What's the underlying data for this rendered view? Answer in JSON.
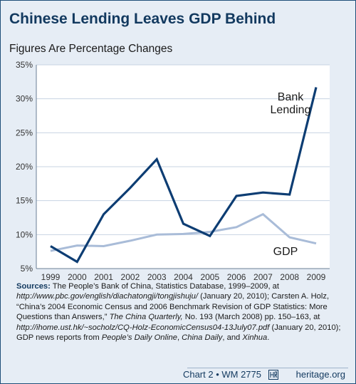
{
  "header": {
    "title": "Chinese Lending Leaves GDP Behind",
    "subtitle": "Figures Are Percentage Changes"
  },
  "chart_data": {
    "type": "line",
    "x": [
      "1999",
      "2000",
      "2001",
      "2002",
      "2003",
      "2004",
      "2005",
      "2006",
      "2007",
      "2008",
      "2009"
    ],
    "series": [
      {
        "name": "Bank Lending",
        "name_lines": [
          "Bank",
          "Lending"
        ],
        "color": "#0d3d73",
        "values": [
          8.3,
          6.0,
          13.0,
          16.9,
          21.1,
          11.6,
          9.8,
          15.7,
          16.2,
          15.9,
          31.7
        ]
      },
      {
        "name": "GDP",
        "color": "#a9bcd8",
        "values": [
          7.6,
          8.4,
          8.3,
          9.1,
          10.0,
          10.1,
          10.4,
          11.1,
          13.0,
          9.6,
          8.7
        ]
      }
    ],
    "yticks": [
      "5%",
      "10%",
      "15%",
      "20%",
      "25%",
      "30%",
      "35%"
    ],
    "ylim": [
      5,
      35
    ],
    "grid": true
  },
  "sources": {
    "label": "Sources:",
    "segments": [
      {
        "t": " The People’s Bank of China, Statistics Database, 1999–2009, at ",
        "i": false
      },
      {
        "t": "http://www.pbc.gov/english/diachatongji/tongjishuju/",
        "i": true
      },
      {
        "t": " (January 20, 2010); Carsten A. Holz, “China’s 2004 Economic Census and 2006 Benchmark Revision of GDP Statistics: More Questions than Answers,” ",
        "i": false
      },
      {
        "t": "The China Quarterly,",
        "i": true
      },
      {
        "t": " No. 193 (March 2008) pp. 150–163, at ",
        "i": false
      },
      {
        "t": "http://ihome.ust.hk/~socholz/CQ-Holz-EconomicCensus04-13July07.pdf",
        "i": true
      },
      {
        "t": " (January 20, 2010); GDP news reports from ",
        "i": false
      },
      {
        "t": "People’s Daily Online",
        "i": true
      },
      {
        "t": ", ",
        "i": false
      },
      {
        "t": "China Daily",
        "i": true
      },
      {
        "t": ", and ",
        "i": false
      },
      {
        "t": "Xinhua",
        "i": true
      },
      {
        "t": ".",
        "i": false
      }
    ]
  },
  "footer": {
    "chart_id": "Chart 2 • WM 2775",
    "site": "heritage.org"
  }
}
